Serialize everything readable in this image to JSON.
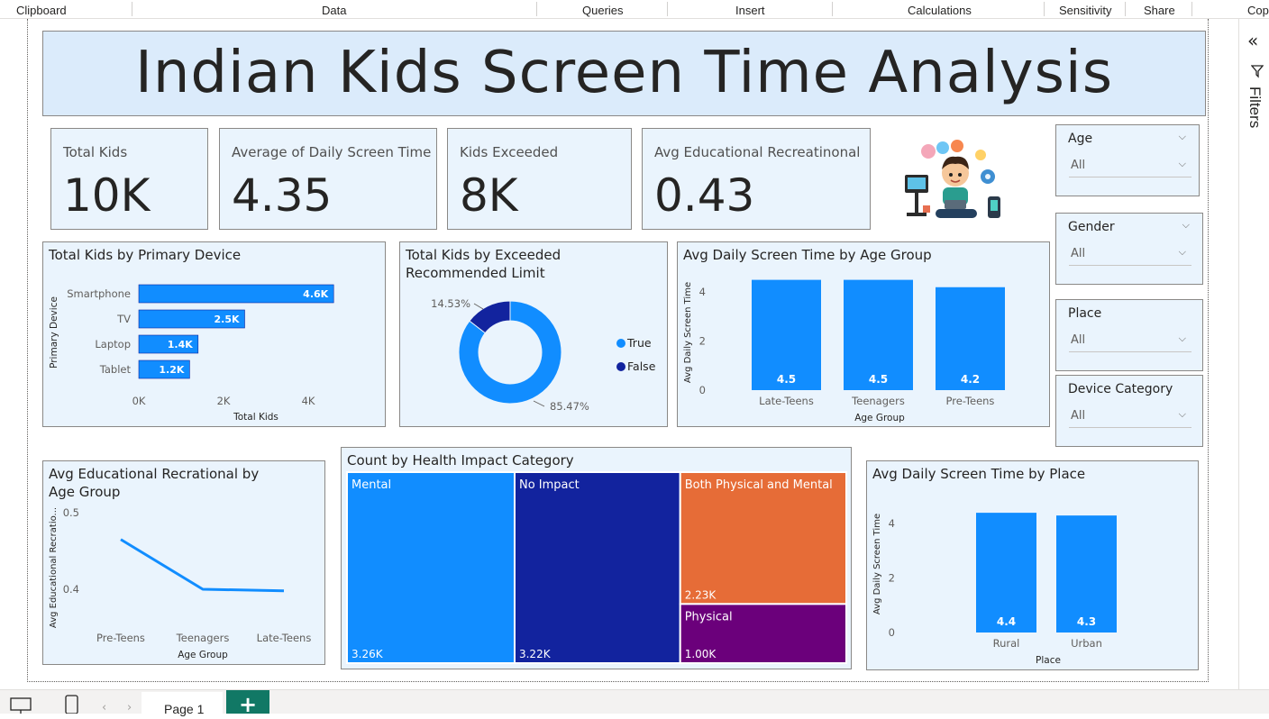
{
  "ribbon": {
    "groups": [
      "Clipboard",
      "Data",
      "Queries",
      "Insert",
      "Calculations",
      "Sensitivity",
      "Share",
      "Copi"
    ]
  },
  "report_title": "Indian Kids Screen Time Analysis",
  "cards": [
    {
      "label": "Total Kids",
      "value": "10K"
    },
    {
      "label": "Average of Daily Screen Time",
      "value": "4.35"
    },
    {
      "label": "Kids Exceeded",
      "value": "8K"
    },
    {
      "label": "Avg Educational Recreatinonal",
      "value": "0.43"
    }
  ],
  "slicers": [
    {
      "title": "Age",
      "value": "All"
    },
    {
      "title": "Gender",
      "value": "All"
    },
    {
      "title": "Place",
      "value": "All"
    },
    {
      "title": "Device Category",
      "value": "All"
    }
  ],
  "filters_pane": {
    "label": "Filters"
  },
  "bottom": {
    "page_tab": "Page 1",
    "add_tab": "+"
  },
  "chart_data": [
    {
      "type": "bar",
      "orientation": "horizontal",
      "title": "Total Kids by Primary Device",
      "xlabel": "Total Kids",
      "ylabel": "Primary Device",
      "categories": [
        "Smartphone",
        "TV",
        "Laptop",
        "Tablet"
      ],
      "values": [
        4600,
        2500,
        1400,
        1200
      ],
      "data_labels": [
        "4.6K",
        "2.5K",
        "1.4K",
        "1.2K"
      ],
      "xticks": [
        "0K",
        "2K",
        "4K"
      ],
      "xlim": [
        0,
        5000
      ],
      "color": "#118dff"
    },
    {
      "type": "pie",
      "donut": true,
      "title": "Total Kids by Exceeded Recommended Limit",
      "categories": [
        "True",
        "False"
      ],
      "values": [
        85.47,
        14.53
      ],
      "data_labels": [
        "85.47%",
        "14.53%"
      ],
      "colors": [
        "#118dff",
        "#12239e"
      ],
      "legend": "right"
    },
    {
      "type": "bar",
      "title": "Avg Daily Screen Time by Age Group",
      "xlabel": "Age Group",
      "ylabel": "Avg Daily Screen Time",
      "categories": [
        "Late-Teens",
        "Teenagers",
        "Pre-Teens"
      ],
      "values": [
        4.5,
        4.5,
        4.2
      ],
      "data_labels": [
        "4.5",
        "4.5",
        "4.2"
      ],
      "yticks": [
        "0",
        "2",
        "4"
      ],
      "ylim": [
        0,
        5
      ],
      "color": "#118dff"
    },
    {
      "type": "line",
      "title": "Avg Educational Recrational by Age Group",
      "xlabel": "Age Group",
      "ylabel": "Avg Educational Recratio...",
      "categories": [
        "Pre-Teens",
        "Teenagers",
        "Late-Teens"
      ],
      "values": [
        0.465,
        0.4,
        0.398
      ],
      "yticks": [
        "0.4",
        "0.5"
      ],
      "ylim": [
        0.36,
        0.51
      ],
      "color": "#118dff"
    },
    {
      "type": "treemap",
      "title": "Count by Health Impact Category",
      "categories": [
        "Mental",
        "No Impact",
        "Both Physical and Mental",
        "Physical"
      ],
      "values": [
        3260,
        3220,
        2230,
        1000
      ],
      "data_labels": [
        "3.26K",
        "3.22K",
        "2.23K",
        "1.00K"
      ],
      "colors": [
        "#118dff",
        "#12239e",
        "#e66c37",
        "#6b007b"
      ]
    },
    {
      "type": "bar",
      "title": "Avg Daily Screen Time by Place",
      "xlabel": "Place",
      "ylabel": "Avg Daily Screen Time",
      "categories": [
        "Rural",
        "Urban"
      ],
      "values": [
        4.4,
        4.3
      ],
      "data_labels": [
        "4.4",
        "4.3"
      ],
      "yticks": [
        "0",
        "2",
        "4"
      ],
      "ylim": [
        0,
        5
      ],
      "color": "#118dff"
    }
  ]
}
